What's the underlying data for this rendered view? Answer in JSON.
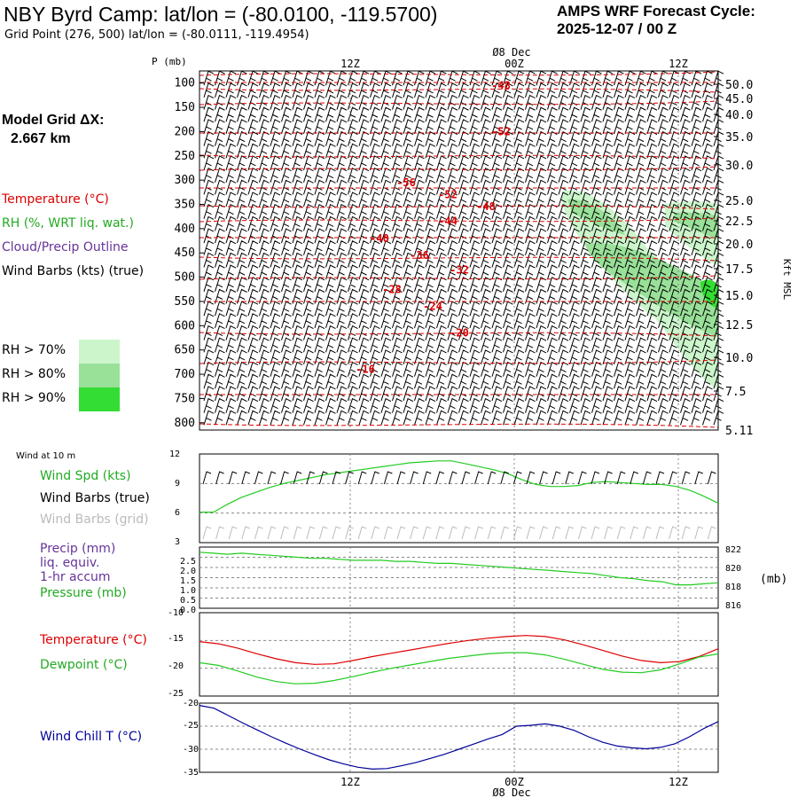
{
  "header": {
    "title": "NBY Byrd Camp:  lat/lon = (-80.0100, -119.5700)",
    "grid_point": "Grid Point (276, 500) lat/lon = (-80.0111, -119.4954)",
    "cycle_line1": "AMPS WRF Forecast Cycle:",
    "cycle_line2": "2025-12-07 / 00  Z"
  },
  "model": {
    "grid_label": "Model Grid ΔX:",
    "grid_value": "2.667 km"
  },
  "legend": {
    "temperature": "Temperature (°C)",
    "rh": "RH (%, WRT liq. wat.)",
    "cloud": "Cloud/Precip Outline",
    "wind": "Wind Barbs (kts) (true)",
    "rh70": "RH > 70%",
    "rh80": "RH > 80%",
    "rh90": "RH > 90%",
    "rh70_color": "#ccf5cc",
    "rh80_color": "#99e099",
    "rh90_color": "#33dd33"
  },
  "time_axis": {
    "top_date": "Ø8 Dec",
    "bottom_date": "Ø8 Dec",
    "ticks": [
      "12Z",
      "00Z",
      "12Z"
    ]
  },
  "colors": {
    "temperature": "#dd0000",
    "rh": "#22cc22",
    "cloud": "#663399",
    "wind_chill": "#000099",
    "grid_barbs": "#bbbbbb"
  },
  "chart_data": [
    {
      "type": "heatmap",
      "name": "sounding",
      "ylabel": "P (mb)",
      "y_right_label": "Kft MSL",
      "pressure_ticks": [
        "100",
        "150",
        "200",
        "250",
        "300",
        "350",
        "400",
        "450",
        "500",
        "550",
        "600",
        "650",
        "700",
        "750",
        "800"
      ],
      "height_ticks": [
        "50.0",
        "45.0",
        "40.0",
        "35.0",
        "30.0",
        "25.0",
        "22.5",
        "20.0",
        "17.5",
        "15.0",
        "12.5",
        "10.0",
        "7.5",
        "5.11"
      ],
      "temperature_labels": [
        {
          "label": "-48",
          "p": 105
        },
        {
          "label": "-52",
          "p": 200
        },
        {
          "label": "-56",
          "p": 305
        },
        {
          "label": "-52",
          "p": 330
        },
        {
          "label": "-48",
          "p": 355
        },
        {
          "label": "-44",
          "p": 385
        },
        {
          "label": "-40",
          "p": 420
        },
        {
          "label": "-36",
          "p": 455
        },
        {
          "label": "-32",
          "p": 485
        },
        {
          "label": "-28",
          "p": 525
        },
        {
          "label": "-24",
          "p": 560
        },
        {
          "label": "-20",
          "p": 615
        },
        {
          "label": "-16",
          "p": 690
        }
      ]
    },
    {
      "type": "line",
      "name": "wind10m",
      "panel_title": "Wind at 10 m",
      "labels": {
        "spd": "Wind Spd (kts)",
        "true": "Wind Barbs (true)",
        "grid": "Wind Barbs (grid)"
      },
      "yticks": [
        "12",
        "9",
        "6",
        "3"
      ],
      "ylim": [
        3,
        12
      ],
      "series": [
        {
          "name": "Wind Spd (kts)",
          "values": [
            6.1,
            6.1,
            6.9,
            7.6,
            8.1,
            8.6,
            9.0,
            9.3,
            9.6,
            9.9,
            10.1,
            10.3,
            10.5,
            10.7,
            10.9,
            11.1,
            11.2,
            11.3,
            11.3,
            11.0,
            10.7,
            10.4,
            10.0,
            9.4,
            8.9,
            8.7,
            8.7,
            8.8,
            9.1,
            9.2,
            9.1,
            9.0,
            8.9,
            8.9,
            8.7,
            8.3,
            7.7,
            7.0
          ]
        }
      ]
    },
    {
      "type": "line",
      "name": "precip_pressure",
      "labels": {
        "precip": "Precip (mm)",
        "liq": "liq. equiv.",
        "accum": "1-hr accum",
        "pres": "Pressure (mb)"
      },
      "yticks_left": [
        "2.5",
        "2.0",
        "1.5",
        "1.0",
        "0.5",
        "0.0"
      ],
      "yticks_right": [
        "822",
        "820",
        "818",
        "816"
      ],
      "right_unit": "(mb)",
      "ylim": [
        816,
        822
      ],
      "series": [
        {
          "name": "Pressure (mb)",
          "values": [
            821.5,
            821.4,
            821.3,
            821.4,
            821.3,
            821.2,
            821.1,
            821.0,
            820.9,
            820.9,
            820.8,
            820.7,
            820.7,
            820.7,
            820.6,
            820.6,
            820.5,
            820.4,
            820.4,
            820.3,
            820.2,
            820.1,
            820.0,
            819.9,
            819.8,
            819.7,
            819.6,
            819.5,
            819.4,
            819.2,
            819.0,
            818.9,
            818.7,
            818.6,
            818.3,
            818.3,
            818.4,
            818.5
          ]
        }
      ]
    },
    {
      "type": "line",
      "name": "temperature",
      "labels": {
        "temp": "Temperature (°C)",
        "dew": "Dewpoint (°C)"
      },
      "yticks": [
        "-10",
        "-15",
        "-20",
        "-25"
      ],
      "ylim": [
        -25,
        -10
      ],
      "series": [
        {
          "name": "Temperature (°C)",
          "values": [
            -15.2,
            -15.6,
            -16.4,
            -17.4,
            -18.3,
            -19.0,
            -19.3,
            -19.2,
            -18.6,
            -17.9,
            -17.3,
            -16.7,
            -16.1,
            -15.5,
            -15.0,
            -14.6,
            -14.3,
            -14.1,
            -14.3,
            -14.9,
            -15.8,
            -16.8,
            -17.8,
            -18.6,
            -19.0,
            -18.8,
            -17.9,
            -16.5
          ]
        },
        {
          "name": "Dewpoint (°C)",
          "values": [
            -19.0,
            -19.5,
            -20.5,
            -21.6,
            -22.4,
            -22.8,
            -22.7,
            -22.2,
            -21.5,
            -20.7,
            -20.0,
            -19.4,
            -18.8,
            -18.2,
            -17.8,
            -17.4,
            -17.2,
            -17.2,
            -17.6,
            -18.4,
            -19.3,
            -20.2,
            -20.7,
            -20.8,
            -20.3,
            -19.2,
            -18.0,
            -17.4
          ]
        }
      ]
    },
    {
      "type": "line",
      "name": "windchill",
      "labels": {
        "wc": "Wind Chill T (°C)"
      },
      "yticks": [
        "-20",
        "-25",
        "-30",
        "-35"
      ],
      "ylim": [
        -35,
        -20
      ],
      "series": [
        {
          "name": "Wind Chill T (°C)",
          "values": [
            -20.5,
            -21.1,
            -22.7,
            -24.3,
            -25.8,
            -27.3,
            -28.7,
            -30.0,
            -31.2,
            -32.3,
            -33.2,
            -33.9,
            -34.3,
            -34.2,
            -33.6,
            -32.9,
            -32.0,
            -31.1,
            -30.0,
            -28.9,
            -27.8,
            -26.8,
            -25.0,
            -24.8,
            -24.5,
            -25.0,
            -25.9,
            -27.3,
            -28.5,
            -29.3,
            -29.7,
            -29.9,
            -29.6,
            -28.8,
            -27.3,
            -25.5,
            -24.0
          ]
        }
      ]
    }
  ]
}
